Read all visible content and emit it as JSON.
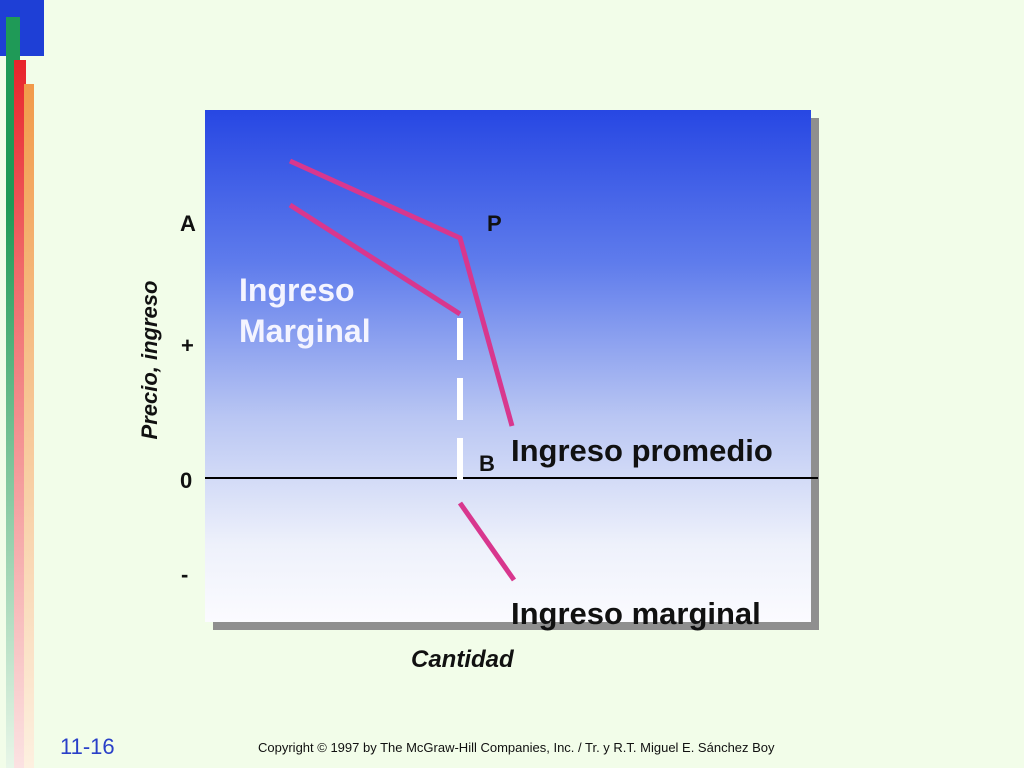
{
  "axis": {
    "ylabel": "Precio, ingreso",
    "xlabel": "Cantidad",
    "y_ticks": {
      "a": "A",
      "plus": "+",
      "zero": "0",
      "minus": "-"
    }
  },
  "points": {
    "p": "P",
    "b": "B"
  },
  "labels": {
    "marginal_inside_line1": "Ingreso",
    "marginal_inside_line2": "Marginal",
    "average_revenue": "Ingreso promedio",
    "marginal_revenue": "Ingreso marginal"
  },
  "footer": {
    "slide_number": "11-16",
    "copyright": "Copyright © 1997 by The McGraw-Hill Companies, Inc. / Tr. y R.T. Miguel E. Sánchez Boy"
  },
  "colors": {
    "curve": "#d8378e",
    "dashed": "#ffffff",
    "axis": "#000000"
  }
}
